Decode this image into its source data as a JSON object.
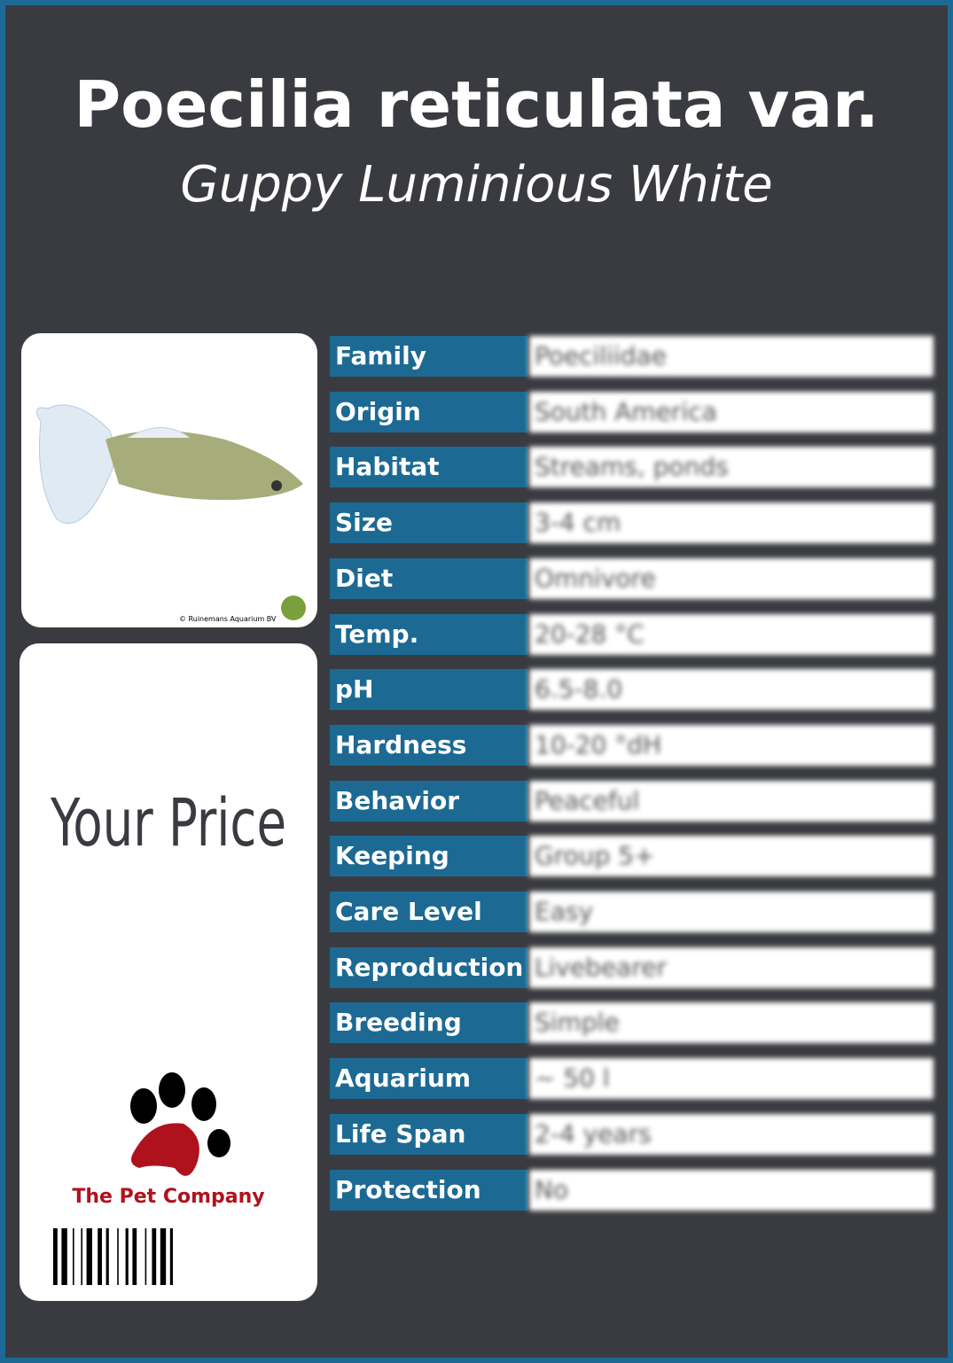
{
  "header": {
    "title": "Poecilia reticulata var.",
    "subtitle": "Guppy Luminious White"
  },
  "image_credit": "© Ruinemans Aquarium BV",
  "price_label": "Your Price",
  "company": "The Pet Company",
  "table": {
    "rows": [
      [
        "Family",
        "Poeciliidae"
      ],
      [
        "Origin",
        "South America"
      ],
      [
        "Habitat",
        "Streams, ponds"
      ],
      [
        "Size",
        "3-4 cm"
      ],
      [
        "Diet",
        "Omnivore"
      ],
      [
        "Temp.",
        "20-28 °C"
      ],
      [
        "pH",
        "6.5-8.0"
      ],
      [
        "Hardness",
        "10-20 °dH"
      ],
      [
        "Behavior",
        "Peaceful"
      ],
      [
        "Keeping",
        "Group 5+"
      ],
      [
        "Care Level",
        "Easy"
      ],
      [
        "Reproduction",
        "Livebearer"
      ],
      [
        "Breeding",
        "Simple"
      ],
      [
        "Aquarium",
        "~ 50 l"
      ],
      [
        "Life Span",
        "2-4 years"
      ],
      [
        "Protection",
        "No"
      ]
    ]
  }
}
